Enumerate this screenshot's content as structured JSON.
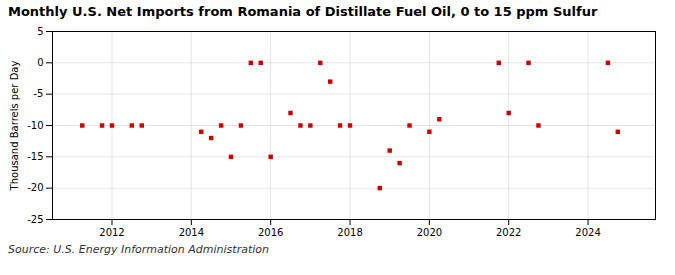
{
  "chart_data": {
    "type": "scatter",
    "title": "Monthly U.S. Net Imports from Romania of Distillate Fuel Oil, 0 to 15 ppm Sulfur",
    "ylabel": "Thousand Barrels per Day",
    "caption": "Source: U.S. Energy Information Administration",
    "color": "#cc0000",
    "marker": "square",
    "grid": true,
    "xlim": [
      2010.5,
      2025.7
    ],
    "xticks": [
      2012,
      2014,
      2016,
      2018,
      2020,
      2022,
      2024
    ],
    "ylim": [
      -25,
      5
    ],
    "yticks": [
      5,
      0,
      -5,
      -10,
      -15,
      -20,
      -25
    ],
    "x": [
      2011.25,
      2011.75,
      2012.0,
      2012.5,
      2012.75,
      2014.25,
      2014.5,
      2014.75,
      2015.0,
      2015.25,
      2015.5,
      2015.75,
      2016.0,
      2016.5,
      2016.75,
      2017.0,
      2017.25,
      2017.5,
      2017.75,
      2018.0,
      2018.75,
      2019.0,
      2019.25,
      2019.5,
      2020.0,
      2020.25,
      2021.75,
      2022.0,
      2022.5,
      2022.75,
      2024.5,
      2024.75
    ],
    "values": [
      -10,
      -10,
      -10,
      -10,
      -10,
      -11,
      -12,
      -10,
      -15,
      -10,
      0,
      0,
      -15,
      -8,
      -10,
      -10,
      0,
      -3,
      -10,
      -10,
      -20,
      -14,
      -16,
      -10,
      -11,
      -9,
      0,
      -8,
      0,
      -10,
      0,
      -11
    ]
  }
}
